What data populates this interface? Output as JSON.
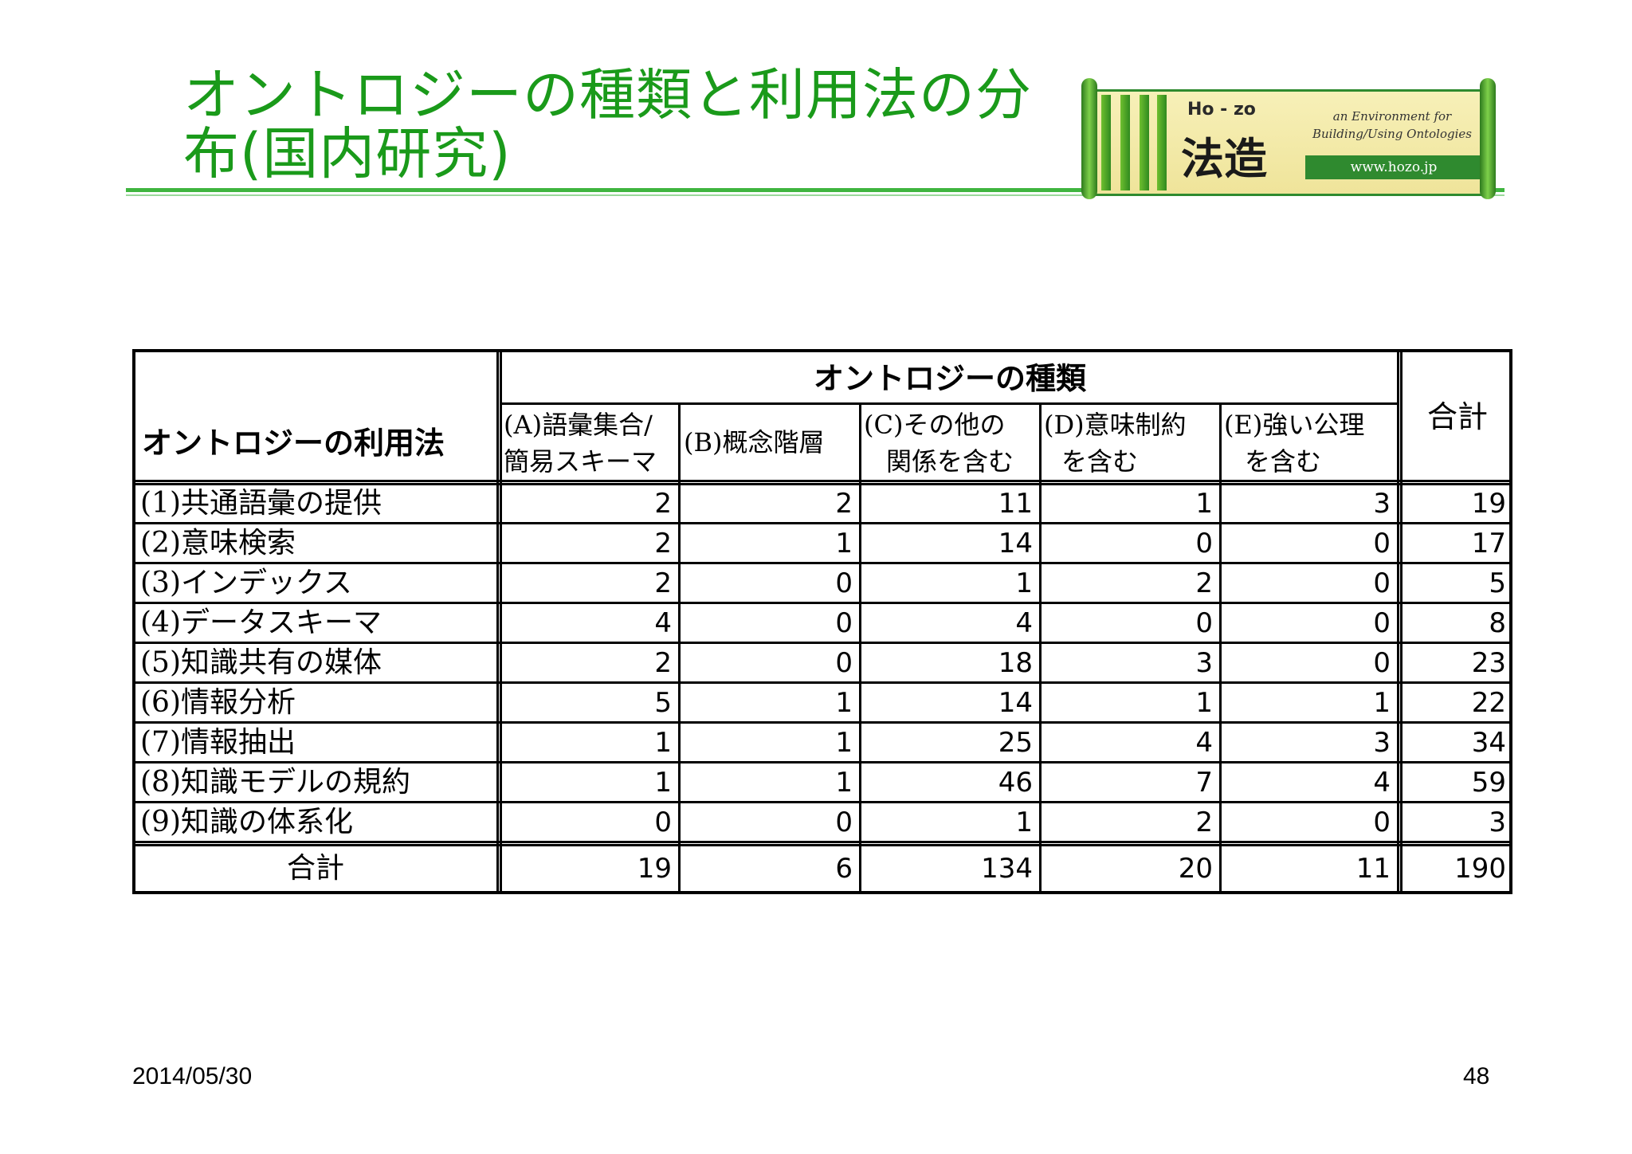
{
  "title": {
    "line1": "オントロジーの種類と利用法の分",
    "line2": "布(国内研究)"
  },
  "logo": {
    "brand": "Ho - zo",
    "kanji": "法造",
    "tagline": "an Environment for Building/Using Ontologies",
    "url": "www.hozo.jp"
  },
  "table": {
    "corner_label": "オントロジーの利用法",
    "group_header": "オントロジーの種類",
    "total_header": "合計",
    "columns": [
      {
        "line1": "(A)語彙集合/",
        "line2": "簡易スキーマ"
      },
      {
        "line1": "(B)概念階層",
        "line2": ""
      },
      {
        "line1": "(C)その他の",
        "line2": "関係を含む"
      },
      {
        "line1": "(D)意味制約",
        "line2": "を含む"
      },
      {
        "line1": "(E)強い公理",
        "line2": "を含む"
      }
    ],
    "rows": [
      {
        "label": "(1)共通語彙の提供",
        "values": [
          "2",
          "2",
          "11",
          "1",
          "3",
          "19"
        ]
      },
      {
        "label": "(2)意味検索",
        "values": [
          "2",
          "1",
          "14",
          "0",
          "0",
          "17"
        ]
      },
      {
        "label": "(3)インデックス",
        "values": [
          "2",
          "0",
          "1",
          "2",
          "0",
          "5"
        ]
      },
      {
        "label": "(4)データスキーマ",
        "values": [
          "4",
          "0",
          "4",
          "0",
          "0",
          "8"
        ]
      },
      {
        "label": "(5)知識共有の媒体",
        "values": [
          "2",
          "0",
          "18",
          "3",
          "0",
          "23"
        ]
      },
      {
        "label": "(6)情報分析",
        "values": [
          "5",
          "1",
          "14",
          "1",
          "1",
          "22"
        ]
      },
      {
        "label": "(7)情報抽出",
        "values": [
          "1",
          "1",
          "25",
          "4",
          "3",
          "34"
        ]
      },
      {
        "label": "(8)知識モデルの規約",
        "values": [
          "1",
          "1",
          "46",
          "7",
          "4",
          "59"
        ]
      },
      {
        "label": "(9)知識の体系化",
        "values": [
          "0",
          "0",
          "1",
          "2",
          "0",
          "3"
        ]
      }
    ],
    "total_row": {
      "label": "合計",
      "values": [
        "19",
        "6",
        "134",
        "20",
        "11",
        "190"
      ]
    }
  },
  "footer": {
    "date": "2014/05/30",
    "page": "48"
  }
}
